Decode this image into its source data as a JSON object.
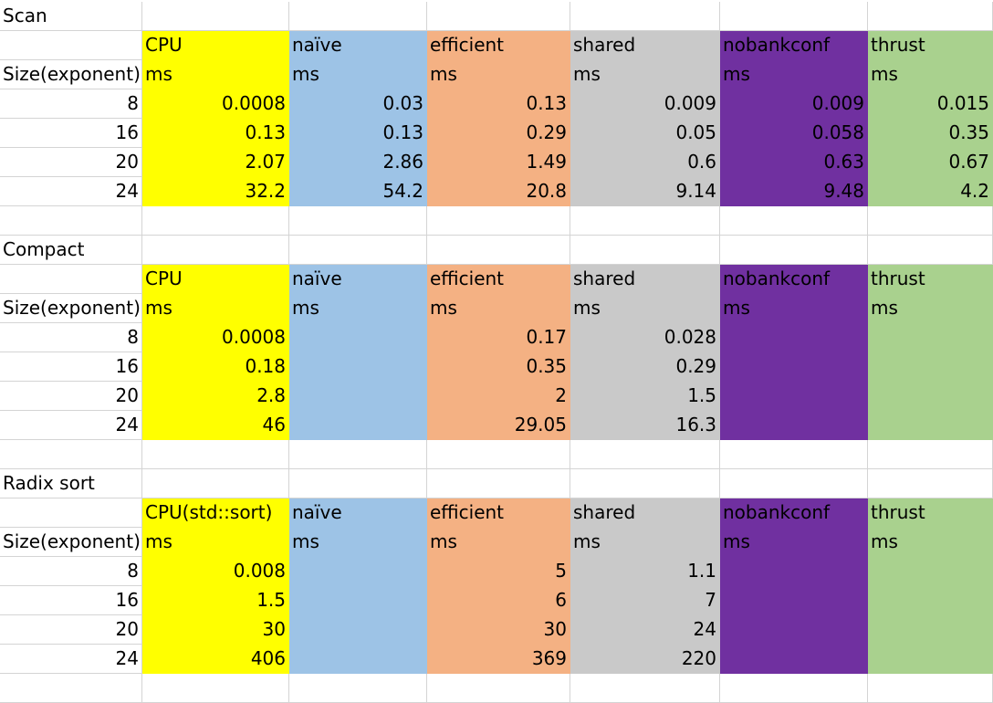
{
  "colors": {
    "CPU": "#ffff00",
    "naive": "#9dc3e6",
    "efficient": "#f4b183",
    "shared": "#c9c9c9",
    "nobankconf": "#7030a0",
    "thrust": "#a9d18e"
  },
  "size_label": "Size(exponent)",
  "unit": "ms",
  "sections": [
    {
      "title": "Scan",
      "headers": [
        "CPU",
        "naïve",
        "efficient",
        "shared",
        "nobankconf",
        "thrust"
      ],
      "rows": [
        {
          "size": "8",
          "values": [
            "0.0008",
            "0.03",
            "0.13",
            "0.009",
            "0.009",
            "0.015"
          ]
        },
        {
          "size": "16",
          "values": [
            "0.13",
            "0.13",
            "0.29",
            "0.05",
            "0.058",
            "0.35"
          ]
        },
        {
          "size": "20",
          "values": [
            "2.07",
            "2.86",
            "1.49",
            "0.6",
            "0.63",
            "0.67"
          ]
        },
        {
          "size": "24",
          "values": [
            "32.2",
            "54.2",
            "20.8",
            "9.14",
            "9.48",
            "4.2"
          ]
        }
      ]
    },
    {
      "title": "Compact",
      "headers": [
        "CPU",
        "naïve",
        "efficient",
        "shared",
        "nobankconf",
        "thrust"
      ],
      "rows": [
        {
          "size": "8",
          "values": [
            "0.0008",
            "",
            "0.17",
            "0.028",
            "",
            ""
          ]
        },
        {
          "size": "16",
          "values": [
            "0.18",
            "",
            "0.35",
            "0.29",
            "",
            ""
          ]
        },
        {
          "size": "20",
          "values": [
            "2.8",
            "",
            "2",
            "1.5",
            "",
            ""
          ]
        },
        {
          "size": "24",
          "values": [
            "46",
            "",
            "29.05",
            "16.3",
            "",
            ""
          ]
        }
      ]
    },
    {
      "title": "Radix sort",
      "headers": [
        "CPU(std::sort)",
        "naïve",
        "efficient",
        "shared",
        "nobankconf",
        "thrust"
      ],
      "rows": [
        {
          "size": "8",
          "values": [
            "0.008",
            "",
            "5",
            "1.1",
            "",
            ""
          ]
        },
        {
          "size": "16",
          "values": [
            "1.5",
            "",
            "6",
            "7",
            "",
            ""
          ]
        },
        {
          "size": "20",
          "values": [
            "30",
            "",
            "30",
            "24",
            "",
            ""
          ]
        },
        {
          "size": "24",
          "values": [
            "406",
            "",
            "369",
            "220",
            "",
            ""
          ]
        }
      ]
    }
  ]
}
